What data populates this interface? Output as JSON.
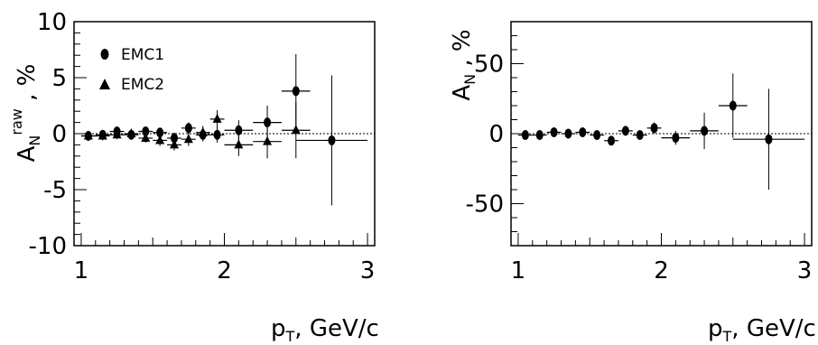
{
  "chart_data": [
    {
      "type": "scatter",
      "title": "",
      "xlabel": "p_T, GeV/c",
      "ylabel": "A_N^raw , %",
      "xlim": [
        0.95,
        3.05
      ],
      "ylim": [
        -10,
        10
      ],
      "xticks": [
        "1",
        "2",
        "3"
      ],
      "yticks": [
        "-10",
        "-5",
        "0",
        "5",
        "10"
      ],
      "legend_position": "top-left",
      "series": [
        {
          "name": "EMC1",
          "marker": "circle",
          "points": [
            {
              "x": 1.05,
              "y": -0.2,
              "yerr": 0.4,
              "xerr": 0.05
            },
            {
              "x": 1.15,
              "y": -0.1,
              "yerr": 0.4,
              "xerr": 0.05
            },
            {
              "x": 1.25,
              "y": 0.2,
              "yerr": 0.4,
              "xerr": 0.05
            },
            {
              "x": 1.35,
              "y": -0.1,
              "yerr": 0.4,
              "xerr": 0.05
            },
            {
              "x": 1.45,
              "y": 0.2,
              "yerr": 0.4,
              "xerr": 0.05
            },
            {
              "x": 1.55,
              "y": 0.1,
              "yerr": 0.4,
              "xerr": 0.05
            },
            {
              "x": 1.65,
              "y": -0.4,
              "yerr": 0.5,
              "xerr": 0.05
            },
            {
              "x": 1.75,
              "y": 0.5,
              "yerr": 0.5,
              "xerr": 0.05
            },
            {
              "x": 1.85,
              "y": -0.1,
              "yerr": 0.6,
              "xerr": 0.05
            },
            {
              "x": 1.95,
              "y": -0.1,
              "yerr": 0.7,
              "xerr": 0.05
            },
            {
              "x": 2.1,
              "y": 0.3,
              "yerr": 0.9,
              "xerr": 0.1
            },
            {
              "x": 2.3,
              "y": 1.0,
              "yerr": 1.5,
              "xerr": 0.1
            },
            {
              "x": 2.5,
              "y": 3.8,
              "yerr": 3.3,
              "xerr": 0.1
            },
            {
              "x": 2.75,
              "y": -0.6,
              "yerr": 5.8,
              "xerr": 0.25
            }
          ]
        },
        {
          "name": "EMC2",
          "marker": "triangle",
          "points": [
            {
              "x": 1.05,
              "y": -0.2,
              "yerr": 0.4,
              "xerr": 0.05
            },
            {
              "x": 1.15,
              "y": -0.2,
              "yerr": 0.4,
              "xerr": 0.05
            },
            {
              "x": 1.25,
              "y": -0.1,
              "yerr": 0.4,
              "xerr": 0.05
            },
            {
              "x": 1.35,
              "y": 0.0,
              "yerr": 0.4,
              "xerr": 0.05
            },
            {
              "x": 1.45,
              "y": -0.4,
              "yerr": 0.4,
              "xerr": 0.05
            },
            {
              "x": 1.55,
              "y": -0.6,
              "yerr": 0.5,
              "xerr": 0.05
            },
            {
              "x": 1.65,
              "y": -1.0,
              "yerr": 0.5,
              "xerr": 0.05
            },
            {
              "x": 1.75,
              "y": -0.5,
              "yerr": 0.6,
              "xerr": 0.05
            },
            {
              "x": 1.85,
              "y": 0.1,
              "yerr": 0.6,
              "xerr": 0.05
            },
            {
              "x": 1.95,
              "y": 1.3,
              "yerr": 0.8,
              "xerr": 0.05
            },
            {
              "x": 2.1,
              "y": -1.0,
              "yerr": 1.0,
              "xerr": 0.1
            },
            {
              "x": 2.3,
              "y": -0.7,
              "yerr": 1.5,
              "xerr": 0.1
            },
            {
              "x": 2.5,
              "y": 0.3,
              "yerr": 2.5,
              "xerr": 0.1
            }
          ]
        }
      ]
    },
    {
      "type": "scatter",
      "title": "",
      "xlabel": "p_T, GeV/c",
      "ylabel": "A_N , %",
      "xlim": [
        0.95,
        3.05
      ],
      "ylim": [
        -80,
        80
      ],
      "xticks": [
        "1",
        "2",
        "3"
      ],
      "yticks": [
        "-50",
        "0",
        "50"
      ],
      "series": [
        {
          "name": "",
          "marker": "circle",
          "points": [
            {
              "x": 1.05,
              "y": -1,
              "yerr": 2,
              "xerr": 0.05
            },
            {
              "x": 1.15,
              "y": -1,
              "yerr": 2,
              "xerr": 0.05
            },
            {
              "x": 1.25,
              "y": 1,
              "yerr": 2,
              "xerr": 0.05
            },
            {
              "x": 1.35,
              "y": 0,
              "yerr": 2,
              "xerr": 0.05
            },
            {
              "x": 1.45,
              "y": 1,
              "yerr": 2,
              "xerr": 0.05
            },
            {
              "x": 1.55,
              "y": -1,
              "yerr": 2,
              "xerr": 0.05
            },
            {
              "x": 1.65,
              "y": -5,
              "yerr": 3,
              "xerr": 0.05
            },
            {
              "x": 1.75,
              "y": 2,
              "yerr": 3,
              "xerr": 0.05
            },
            {
              "x": 1.85,
              "y": -1,
              "yerr": 3,
              "xerr": 0.05
            },
            {
              "x": 1.95,
              "y": 4,
              "yerr": 4,
              "xerr": 0.05
            },
            {
              "x": 2.1,
              "y": -3,
              "yerr": 5,
              "xerr": 0.1
            },
            {
              "x": 2.3,
              "y": 2,
              "yerr": 13,
              "xerr": 0.1
            },
            {
              "x": 2.5,
              "y": 20,
              "yerr": 23,
              "xerr": 0.1
            },
            {
              "x": 2.75,
              "y": -4,
              "yerr": 36,
              "xerr": 0.25
            }
          ]
        }
      ]
    }
  ]
}
